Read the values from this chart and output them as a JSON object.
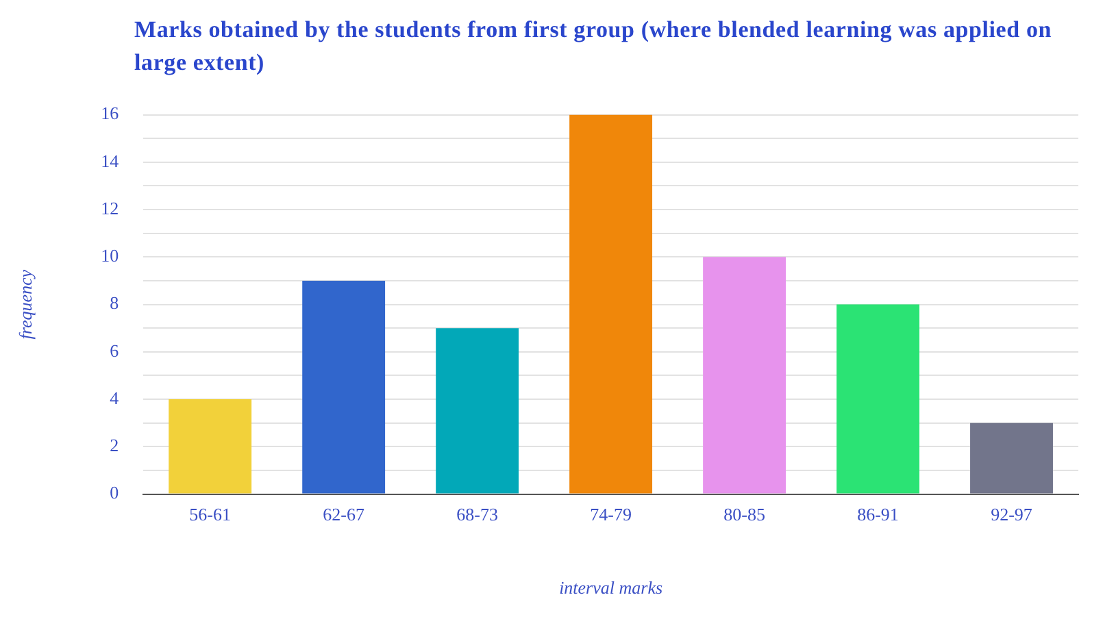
{
  "chart_data": {
    "type": "bar",
    "title": "Marks obtained by the students from first group (where blended learning was applied on large extent)",
    "xlabel": "interval marks",
    "ylabel": "frequency",
    "categories": [
      "56-61",
      "62-67",
      "68-73",
      "74-79",
      "80-85",
      "86-91",
      "92-97"
    ],
    "values": [
      4,
      9,
      7,
      16,
      10,
      8,
      3
    ],
    "colors": [
      "#f2d13a",
      "#3166cc",
      "#02a8b8",
      "#f0870a",
      "#e793ed",
      "#2be374",
      "#72758b"
    ],
    "ylim": [
      0,
      16
    ],
    "yticks": [
      0,
      {
        "value": 1,
        "label": null
      },
      2,
      {
        "value": 3,
        "label": null
      },
      4,
      {
        "value": 5,
        "label": null
      },
      6,
      {
        "value": 7,
        "label": null
      },
      8,
      {
        "value": 9,
        "label": null
      },
      10,
      {
        "value": 11,
        "label": null
      },
      12,
      {
        "value": 13,
        "label": null
      },
      14,
      {
        "value": 15,
        "label": null
      },
      16
    ],
    "grid": "y",
    "legend": false
  }
}
